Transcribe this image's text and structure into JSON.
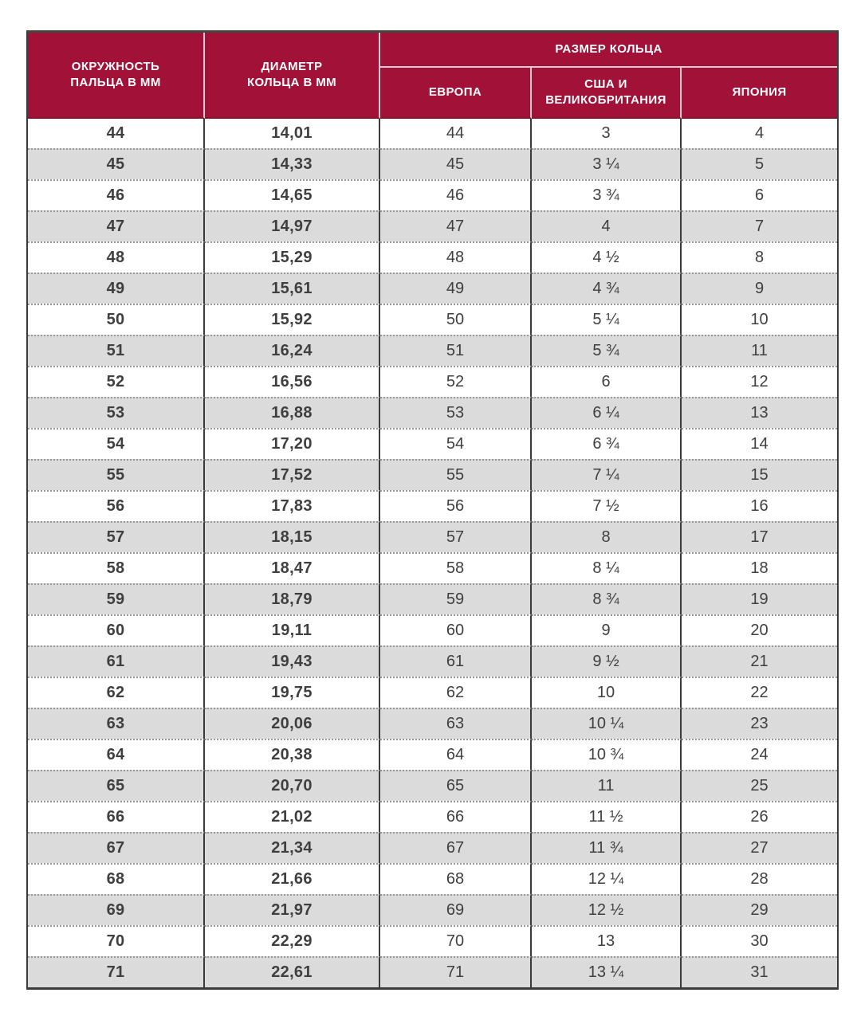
{
  "chart_data": {
    "type": "table",
    "header": {
      "circumference": "ОКРУЖНОСТЬ\nПАЛЬЦА В ММ",
      "diameter": "ДИАМЕТР\nКОЛЬЦА В ММ",
      "ring_size_group": "РАЗМЕР КОЛЬЦА",
      "europe": "ЕВРОПА",
      "usa_uk": "США И\nВЕЛИКОБРИТАНИЯ",
      "japan": "ЯПОНИЯ"
    },
    "columns": [
      "ОКРУЖНОСТЬ ПАЛЬЦА В ММ",
      "ДИАМЕТР КОЛЬЦА В ММ",
      "ЕВРОПА",
      "США И ВЕЛИКОБРИТАНИЯ",
      "ЯПОНИЯ"
    ],
    "rows": [
      [
        "44",
        "14,01",
        "44",
        "3",
        "4"
      ],
      [
        "45",
        "14,33",
        "45",
        "3 ¼",
        "5"
      ],
      [
        "46",
        "14,65",
        "46",
        "3 ¾",
        "6"
      ],
      [
        "47",
        "14,97",
        "47",
        "4",
        "7"
      ],
      [
        "48",
        "15,29",
        "48",
        "4 ½",
        "8"
      ],
      [
        "49",
        "15,61",
        "49",
        "4 ¾",
        "9"
      ],
      [
        "50",
        "15,92",
        "50",
        "5 ¼",
        "10"
      ],
      [
        "51",
        "16,24",
        "51",
        "5 ¾",
        "11"
      ],
      [
        "52",
        "16,56",
        "52",
        "6",
        "12"
      ],
      [
        "53",
        "16,88",
        "53",
        "6 ¼",
        "13"
      ],
      [
        "54",
        "17,20",
        "54",
        "6 ¾",
        "14"
      ],
      [
        "55",
        "17,52",
        "55",
        "7 ¼",
        "15"
      ],
      [
        "56",
        "17,83",
        "56",
        "7 ½",
        "16"
      ],
      [
        "57",
        "18,15",
        "57",
        "8",
        "17"
      ],
      [
        "58",
        "18,47",
        "58",
        "8 ¼",
        "18"
      ],
      [
        "59",
        "18,79",
        "59",
        "8 ¾",
        "19"
      ],
      [
        "60",
        "19,11",
        "60",
        "9",
        "20"
      ],
      [
        "61",
        "19,43",
        "61",
        "9 ½",
        "21"
      ],
      [
        "62",
        "19,75",
        "62",
        "10",
        "22"
      ],
      [
        "63",
        "20,06",
        "63",
        "10 ¼",
        "23"
      ],
      [
        "64",
        "20,38",
        "64",
        "10 ¾",
        "24"
      ],
      [
        "65",
        "20,70",
        "65",
        "11",
        "25"
      ],
      [
        "66",
        "21,02",
        "66",
        "11 ½",
        "26"
      ],
      [
        "67",
        "21,34",
        "67",
        "11 ¾",
        "27"
      ],
      [
        "68",
        "21,66",
        "68",
        "12 ¼",
        "28"
      ],
      [
        "69",
        "21,97",
        "69",
        "12 ½",
        "29"
      ],
      [
        "70",
        "22,29",
        "70",
        "13",
        "30"
      ],
      [
        "71",
        "22,61",
        "71",
        "13 ¼",
        "31"
      ]
    ],
    "layout_hints": {
      "alternating_rows": true,
      "first_row_background": "white"
    }
  },
  "colors": {
    "header_bg": "#A21238",
    "header_text": "#FFFFFF",
    "header_divider": "#E8CBD3",
    "row_white": "#FFFFFF",
    "row_gray": "#DBDBDB",
    "cell_text": "#3F3F41",
    "column_border": "#3B3B3B",
    "dotted_row_border": "#979797"
  }
}
